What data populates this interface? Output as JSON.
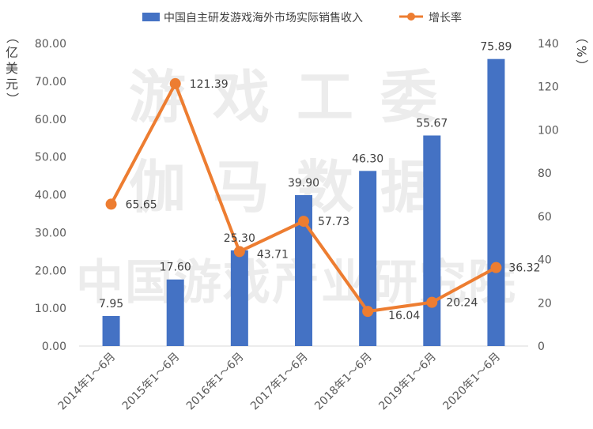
{
  "watermark": {
    "lines": [
      "游戏工委",
      "伽马数据",
      "中国游戏产业研究院"
    ]
  },
  "chart_data": {
    "type": "bar+line",
    "categories": [
      "2014年1～6月",
      "2015年1～6月",
      "2016年1～6月",
      "2017年1～6月",
      "2018年1～6月",
      "2019年1～6月",
      "2020年1～6月"
    ],
    "series": [
      {
        "name": "中国自主研发游戏海外市场实际销售收入",
        "type": "bar",
        "axis": "left",
        "color": "#4472c4",
        "values": [
          7.95,
          17.6,
          25.3,
          39.9,
          46.3,
          55.67,
          75.89
        ],
        "labels": [
          "7.95",
          "17.60",
          "25.30",
          "39.90",
          "46.30",
          "55.67",
          "75.89"
        ]
      },
      {
        "name": "增长率",
        "type": "line",
        "axis": "right",
        "color": "#ed7d31",
        "values": [
          65.65,
          121.39,
          43.71,
          57.73,
          16.04,
          20.24,
          36.32
        ],
        "labels": [
          "65.65",
          "121.39",
          "43.71",
          "57.73",
          "16.04",
          "20.24",
          "36.32"
        ]
      }
    ],
    "y_left": {
      "unit_chars": [
        "（",
        "亿",
        "美",
        "元",
        "）"
      ],
      "range": [
        0,
        80
      ],
      "ticks": [
        "0.00",
        "10.00",
        "20.00",
        "30.00",
        "40.00",
        "50.00",
        "60.00",
        "70.00",
        "80.00"
      ]
    },
    "y_right": {
      "unit_chars": [
        "（",
        "%",
        "）"
      ],
      "range": [
        0,
        140
      ],
      "ticks": [
        "0",
        "20",
        "40",
        "60",
        "80",
        "100",
        "120",
        "140"
      ]
    },
    "legend_position": "top",
    "grid": false
  }
}
